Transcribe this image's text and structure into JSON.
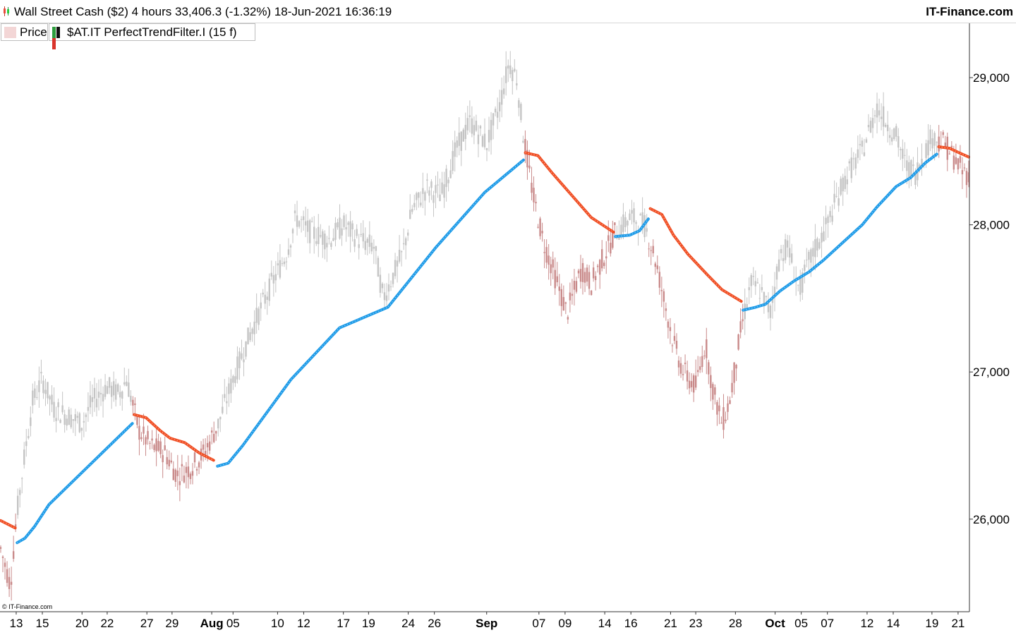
{
  "header": {
    "title": "Wall Street Cash ($2) 4 hours 33,406.3 (-1.32%) 18-Jun-2021 16:36:19",
    "brand": "IT-Finance.com"
  },
  "legend": {
    "price_label": "Price",
    "indicator_label": "$AT.IT PerfectTrendFilter.I (15 f)"
  },
  "copyright": "© IT-Finance.com",
  "colors": {
    "up_trend": "#1e9be8",
    "down_trend": "#f04e23",
    "candle_down": "#c98a8a",
    "candle_up": "#c4c4c4",
    "axis_line": "#333333"
  },
  "chart_data": {
    "type": "line",
    "title": "Wall Street Cash ($2) 4 hours",
    "ylim": [
      25400,
      29230
    ],
    "y_ticks": [
      {
        "value": 26000,
        "label": "26,000"
      },
      {
        "value": 27000,
        "label": "27,000"
      },
      {
        "value": 28000,
        "label": "28,000"
      },
      {
        "value": 29000,
        "label": "29,000"
      }
    ],
    "x_range": [
      0,
      100
    ],
    "x_ticks": [
      {
        "pos": 1.6,
        "label": "13",
        "bold": false
      },
      {
        "pos": 4.3,
        "label": "15",
        "bold": false
      },
      {
        "pos": 8.4,
        "label": "20",
        "bold": false
      },
      {
        "pos": 11.0,
        "label": "22",
        "bold": false
      },
      {
        "pos": 15.1,
        "label": "27",
        "bold": false
      },
      {
        "pos": 17.7,
        "label": "29",
        "bold": false
      },
      {
        "pos": 21.8,
        "label": "Aug",
        "bold": true
      },
      {
        "pos": 24.0,
        "label": "05",
        "bold": false
      },
      {
        "pos": 28.6,
        "label": "10",
        "bold": false
      },
      {
        "pos": 31.3,
        "label": "12",
        "bold": false
      },
      {
        "pos": 35.4,
        "label": "17",
        "bold": false
      },
      {
        "pos": 38.0,
        "label": "19",
        "bold": false
      },
      {
        "pos": 42.1,
        "label": "24",
        "bold": false
      },
      {
        "pos": 44.8,
        "label": "26",
        "bold": false
      },
      {
        "pos": 50.2,
        "label": "Sep",
        "bold": true
      },
      {
        "pos": 55.6,
        "label": "07",
        "bold": false
      },
      {
        "pos": 58.3,
        "label": "09",
        "bold": false
      },
      {
        "pos": 62.4,
        "label": "14",
        "bold": false
      },
      {
        "pos": 65.1,
        "label": "16",
        "bold": false
      },
      {
        "pos": 69.2,
        "label": "21",
        "bold": false
      },
      {
        "pos": 71.8,
        "label": "23",
        "bold": false
      },
      {
        "pos": 75.9,
        "label": "28",
        "bold": false
      },
      {
        "pos": 80.0,
        "label": "Oct",
        "bold": true
      },
      {
        "pos": 82.7,
        "label": "05",
        "bold": false
      },
      {
        "pos": 85.4,
        "label": "07",
        "bold": false
      },
      {
        "pos": 89.5,
        "label": "12",
        "bold": false
      },
      {
        "pos": 92.2,
        "label": "14",
        "bold": false
      },
      {
        "pos": 96.2,
        "label": "19",
        "bold": false
      },
      {
        "pos": 98.9,
        "label": "21",
        "bold": false
      }
    ],
    "price_path": [
      [
        0.0,
        25800
      ],
      [
        1.0,
        25550
      ],
      [
        1.6,
        26000
      ],
      [
        2.5,
        26450
      ],
      [
        3.3,
        26800
      ],
      [
        4.3,
        26950
      ],
      [
        5.5,
        26750
      ],
      [
        7.0,
        26700
      ],
      [
        8.4,
        26650
      ],
      [
        9.5,
        26800
      ],
      [
        11.0,
        26900
      ],
      [
        12.2,
        26850
      ],
      [
        13.0,
        26950
      ],
      [
        14.3,
        26600
      ],
      [
        15.5,
        26500
      ],
      [
        17.0,
        26450
      ],
      [
        18.2,
        26300
      ],
      [
        19.6,
        26350
      ],
      [
        21.0,
        26450
      ],
      [
        22.5,
        26650
      ],
      [
        24.0,
        26950
      ],
      [
        26.0,
        27300
      ],
      [
        28.0,
        27600
      ],
      [
        29.5,
        27800
      ],
      [
        30.5,
        28050
      ],
      [
        32.0,
        27950
      ],
      [
        34.0,
        27900
      ],
      [
        35.4,
        28000
      ],
      [
        37.0,
        27900
      ],
      [
        38.6,
        27850
      ],
      [
        39.5,
        27500
      ],
      [
        41.5,
        27800
      ],
      [
        42.5,
        28100
      ],
      [
        44.0,
        28250
      ],
      [
        45.5,
        28200
      ],
      [
        47.0,
        28500
      ],
      [
        48.5,
        28700
      ],
      [
        50.2,
        28550
      ],
      [
        51.5,
        28800
      ],
      [
        52.5,
        29100
      ],
      [
        53.3,
        29000
      ],
      [
        54.0,
        28600
      ],
      [
        55.0,
        28200
      ],
      [
        56.0,
        27900
      ],
      [
        57.5,
        27600
      ],
      [
        58.5,
        27400
      ],
      [
        60.0,
        27700
      ],
      [
        61.0,
        27600
      ],
      [
        62.4,
        27800
      ],
      [
        63.5,
        27950
      ],
      [
        65.1,
        28050
      ],
      [
        66.5,
        28000
      ],
      [
        67.5,
        27800
      ],
      [
        68.5,
        27500
      ],
      [
        69.5,
        27200
      ],
      [
        70.5,
        27000
      ],
      [
        71.8,
        26900
      ],
      [
        72.8,
        27200
      ],
      [
        73.5,
        26900
      ],
      [
        74.5,
        26650
      ],
      [
        75.3,
        26800
      ],
      [
        76.5,
        27300
      ],
      [
        77.5,
        27600
      ],
      [
        78.5,
        27550
      ],
      [
        79.5,
        27400
      ],
      [
        80.5,
        27800
      ],
      [
        81.3,
        27850
      ],
      [
        82.5,
        27550
      ],
      [
        83.5,
        27750
      ],
      [
        85.4,
        28000
      ],
      [
        86.5,
        28200
      ],
      [
        87.5,
        28350
      ],
      [
        89.0,
        28500
      ],
      [
        90.5,
        28800
      ],
      [
        91.5,
        28700
      ],
      [
        92.5,
        28600
      ],
      [
        93.5,
        28400
      ],
      [
        94.5,
        28350
      ],
      [
        95.5,
        28500
      ],
      [
        96.2,
        28600
      ],
      [
        97.5,
        28550
      ],
      [
        98.5,
        28450
      ],
      [
        99.5,
        28350
      ],
      [
        100.0,
        28350
      ]
    ],
    "series": [
      {
        "trend": "down",
        "points": [
          [
            0.0,
            25990
          ],
          [
            1.5,
            25940
          ]
        ]
      },
      {
        "trend": "up",
        "points": [
          [
            1.7,
            25840
          ],
          [
            2.5,
            25870
          ],
          [
            3.5,
            25950
          ],
          [
            5.0,
            26100
          ],
          [
            13.6,
            26650
          ]
        ]
      },
      {
        "trend": "down",
        "points": [
          [
            13.8,
            26710
          ],
          [
            15.0,
            26690
          ],
          [
            16.5,
            26600
          ],
          [
            17.5,
            26550
          ],
          [
            19.0,
            26520
          ],
          [
            20.5,
            26450
          ],
          [
            22.0,
            26400
          ]
        ]
      },
      {
        "trend": "up",
        "points": [
          [
            22.4,
            26360
          ],
          [
            23.5,
            26380
          ],
          [
            25.0,
            26500
          ],
          [
            30.0,
            26950
          ],
          [
            35.0,
            27300
          ],
          [
            40.0,
            27440
          ],
          [
            45.0,
            27850
          ],
          [
            50.0,
            28220
          ],
          [
            54.0,
            28440
          ]
        ]
      },
      {
        "trend": "down",
        "points": [
          [
            54.2,
            28490
          ],
          [
            55.5,
            28470
          ],
          [
            57.0,
            28350
          ],
          [
            59.0,
            28200
          ],
          [
            61.0,
            28050
          ],
          [
            63.3,
            27950
          ]
        ]
      },
      {
        "trend": "up",
        "points": [
          [
            63.5,
            27920
          ],
          [
            65.0,
            27930
          ],
          [
            66.0,
            27960
          ],
          [
            66.9,
            28040
          ]
        ]
      },
      {
        "trend": "down",
        "points": [
          [
            67.1,
            28110
          ],
          [
            68.3,
            28070
          ],
          [
            69.5,
            27930
          ],
          [
            71.0,
            27800
          ],
          [
            73.0,
            27660
          ],
          [
            74.5,
            27560
          ],
          [
            76.5,
            27480
          ]
        ]
      },
      {
        "trend": "up",
        "points": [
          [
            76.7,
            27420
          ],
          [
            78.0,
            27440
          ],
          [
            79.0,
            27460
          ],
          [
            80.5,
            27550
          ],
          [
            82.0,
            27620
          ],
          [
            83.5,
            27680
          ],
          [
            85.0,
            27760
          ],
          [
            87.0,
            27880
          ],
          [
            89.0,
            28000
          ],
          [
            90.5,
            28120
          ],
          [
            92.5,
            28260
          ],
          [
            94.0,
            28320
          ],
          [
            95.5,
            28420
          ],
          [
            96.7,
            28480
          ]
        ]
      },
      {
        "trend": "down",
        "points": [
          [
            96.9,
            28530
          ],
          [
            98.0,
            28520
          ],
          [
            99.0,
            28490
          ],
          [
            100.0,
            28460
          ]
        ]
      }
    ]
  }
}
